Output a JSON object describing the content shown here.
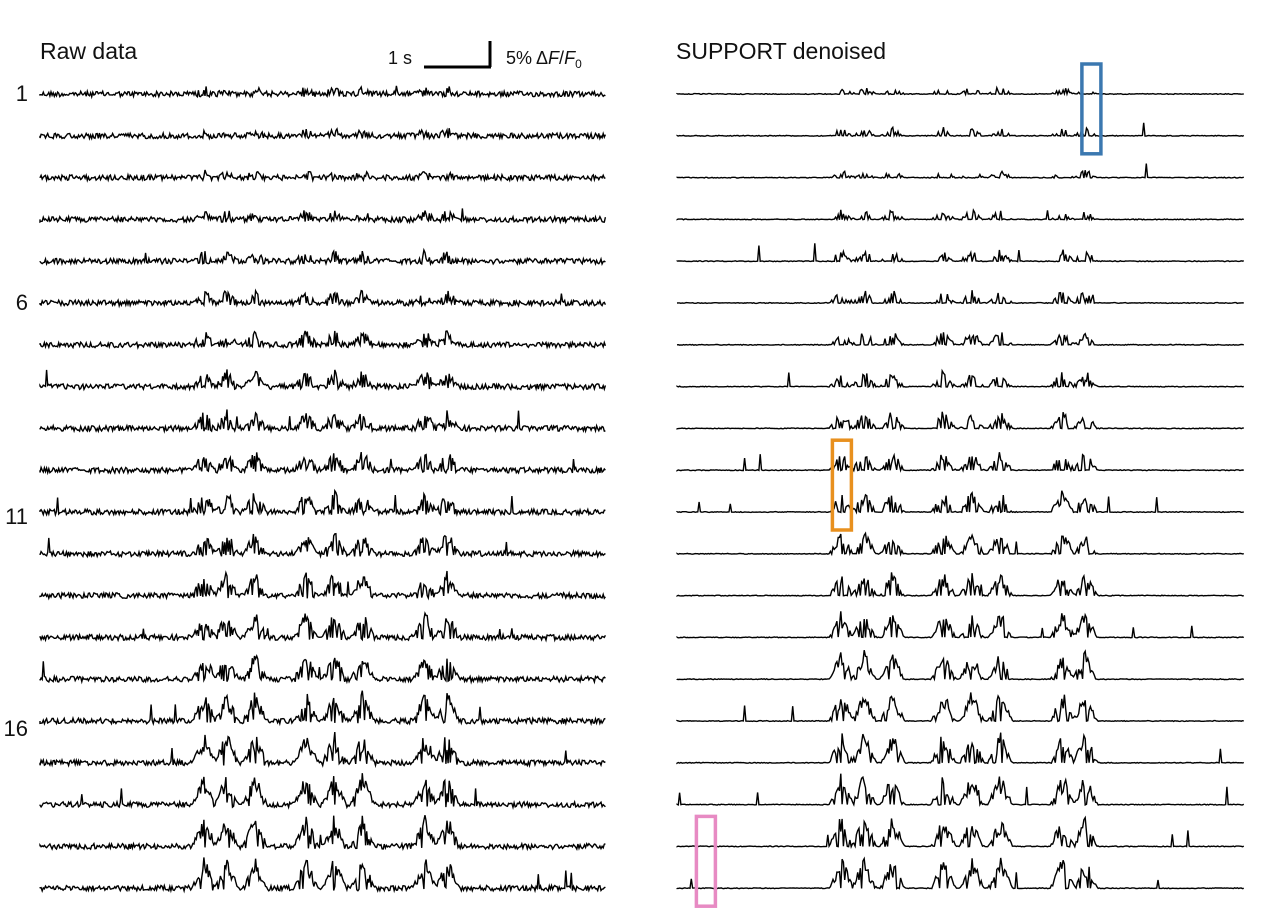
{
  "panels": {
    "left_title": "Raw data",
    "right_title": "SUPPORT denoised"
  },
  "scale_bar": {
    "time_label": "1 s",
    "amp_prefix": "5% Δ",
    "amp_f": "F",
    "amp_slash": "/",
    "amp_f0": "F",
    "amp_sub": "0"
  },
  "row_labels": [
    {
      "row": 1,
      "text": "1"
    },
    {
      "row": 6,
      "text": "6"
    },
    {
      "row": 11,
      "text": "11"
    },
    {
      "row": 16,
      "text": "16"
    }
  ],
  "traces": {
    "count": 20,
    "spike_centers": [
      0.29,
      0.33,
      0.38,
      0.47,
      0.52,
      0.57,
      0.68,
      0.72
    ],
    "burst_rows": [
      10,
      11,
      12,
      13,
      14,
      15,
      16,
      17,
      18,
      19,
      20
    ]
  },
  "highlights": [
    {
      "color": "#3b78b0",
      "panel": "right",
      "rows": [
        1,
        2
      ],
      "time_fraction": 0.73
    },
    {
      "color": "#e8901e",
      "panel": "right",
      "rows": [
        10,
        11
      ],
      "time_fraction": 0.29
    },
    {
      "color": "#e78ac3",
      "panel": "right",
      "rows": [
        19,
        20
      ],
      "time_fraction": 0.05
    }
  ],
  "colors": {
    "trace": "#000000"
  }
}
